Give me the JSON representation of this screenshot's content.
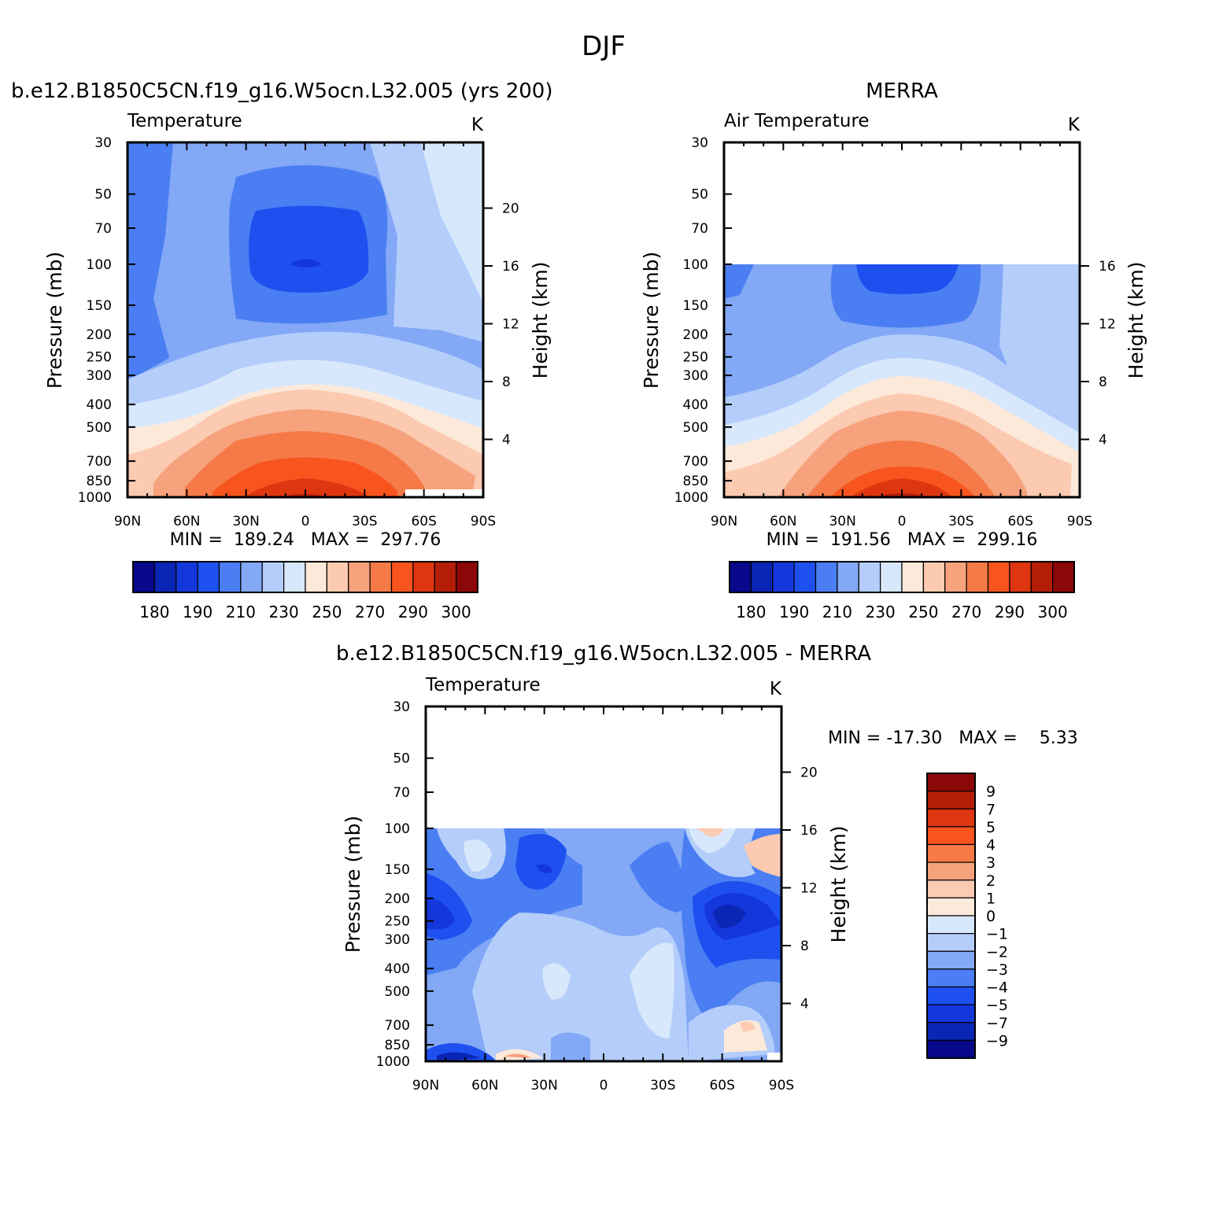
{
  "page": {
    "title": "DJF"
  },
  "colors": {
    "temp_levels": [
      "#08088a",
      "#0a26b4",
      "#1437dc",
      "#1e50f0",
      "#4a7ef2",
      "#82a8f6",
      "#b4cdfa",
      "#d8e8fc",
      "#fde9da",
      "#fbcab0",
      "#f6a27c",
      "#f57a48",
      "#f8541e",
      "#de3610",
      "#b41e08",
      "#8a0808"
    ],
    "diff_levels": [
      "#08088a",
      "#0a26b4",
      "#1437dc",
      "#1e50f0",
      "#4a7ef2",
      "#82a8f6",
      "#b4cdfa",
      "#d8e8fc",
      "#fde9da",
      "#fbcab0",
      "#f6a27c",
      "#f57a48",
      "#f8541e",
      "#de3610",
      "#b41e08",
      "#8a0808"
    ]
  },
  "chart_data": [
    {
      "type": "heatmap",
      "panel_title": "b.e12.B1850C5CN.f19_g16.W5ocn.L32.005 (yrs 200)",
      "left_label": "Temperature",
      "units": "K",
      "ylabel": "Pressure (mb)",
      "y2label": "Height (km)",
      "x_ticks": [
        "90N",
        "60N",
        "30N",
        "0",
        "30S",
        "60S",
        "90S"
      ],
      "y_ticks": [
        "30",
        "50",
        "70",
        "100",
        "150",
        "200",
        "250",
        "300",
        "400",
        "500",
        "700",
        "850",
        "1000"
      ],
      "y2_ticks": [
        "20",
        "16",
        "12",
        "8",
        "4"
      ],
      "stats": "MIN =  189.24   MAX =  297.76",
      "colorbar_labels": [
        "180",
        "190",
        "210",
        "230",
        "250",
        "270",
        "290",
        "300"
      ],
      "data_top_mb": 30
    },
    {
      "type": "heatmap",
      "panel_title": "MERRA",
      "left_label": "Air Temperature",
      "units": "K",
      "ylabel": "Pressure (mb)",
      "y2label": "Height (km)",
      "x_ticks": [
        "90N",
        "60N",
        "30N",
        "0",
        "30S",
        "60S",
        "90S"
      ],
      "y_ticks": [
        "30",
        "50",
        "70",
        "100",
        "150",
        "200",
        "250",
        "300",
        "400",
        "500",
        "700",
        "850",
        "1000"
      ],
      "y2_ticks": [
        "16",
        "12",
        "8",
        "4"
      ],
      "stats": "MIN =  191.56   MAX =  299.16",
      "colorbar_labels": [
        "180",
        "190",
        "210",
        "230",
        "250",
        "270",
        "290",
        "300"
      ],
      "data_top_mb": 100
    },
    {
      "type": "heatmap",
      "panel_title": "b.e12.B1850C5CN.f19_g16.W5ocn.L32.005 - MERRA",
      "left_label": "Temperature",
      "units": "K",
      "ylabel": "Pressure (mb)",
      "y2label": "Height (km)",
      "x_ticks": [
        "90N",
        "60N",
        "30N",
        "0",
        "30S",
        "60S",
        "90S"
      ],
      "y_ticks": [
        "30",
        "50",
        "70",
        "100",
        "150",
        "200",
        "250",
        "300",
        "400",
        "500",
        "700",
        "850",
        "1000"
      ],
      "y2_ticks": [
        "20",
        "16",
        "12",
        "8",
        "4"
      ],
      "stats": "MIN = -17.30   MAX =    5.33",
      "colorbar_labels": [
        "9",
        "7",
        "5",
        "4",
        "3",
        "2",
        "1",
        "0",
        "-1",
        "-2",
        "-3",
        "-4",
        "-5",
        "-7",
        "-9"
      ],
      "data_top_mb": 100
    }
  ]
}
